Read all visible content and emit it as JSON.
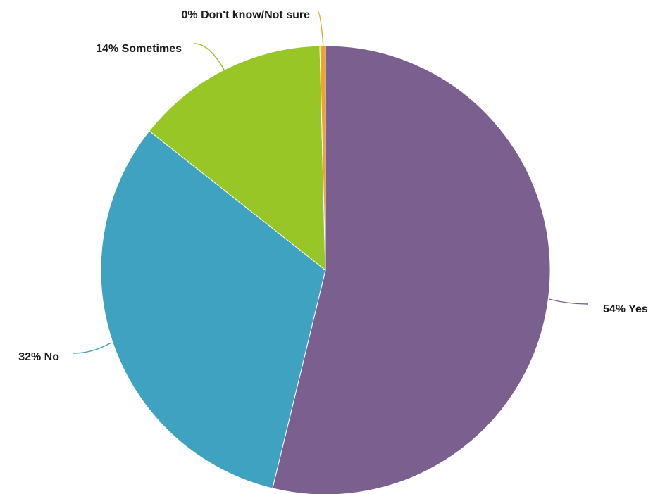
{
  "chart_data": {
    "type": "pie",
    "start": "12 o'clock",
    "direction": "clockwise",
    "slices": [
      {
        "name": "Yes",
        "value": 54,
        "label": "54% Yes",
        "color": "#7b5f8f"
      },
      {
        "name": "No",
        "value": 32,
        "label": "32% No",
        "color": "#3fa2c1"
      },
      {
        "name": "Sometimes",
        "value": 14,
        "label": "14% Sometimes",
        "color": "#97c626"
      },
      {
        "name": "Don't know/Not sure",
        "value": 0.4,
        "label": "0% Don't know/Not sure",
        "color": "#f6a21d"
      }
    ]
  }
}
